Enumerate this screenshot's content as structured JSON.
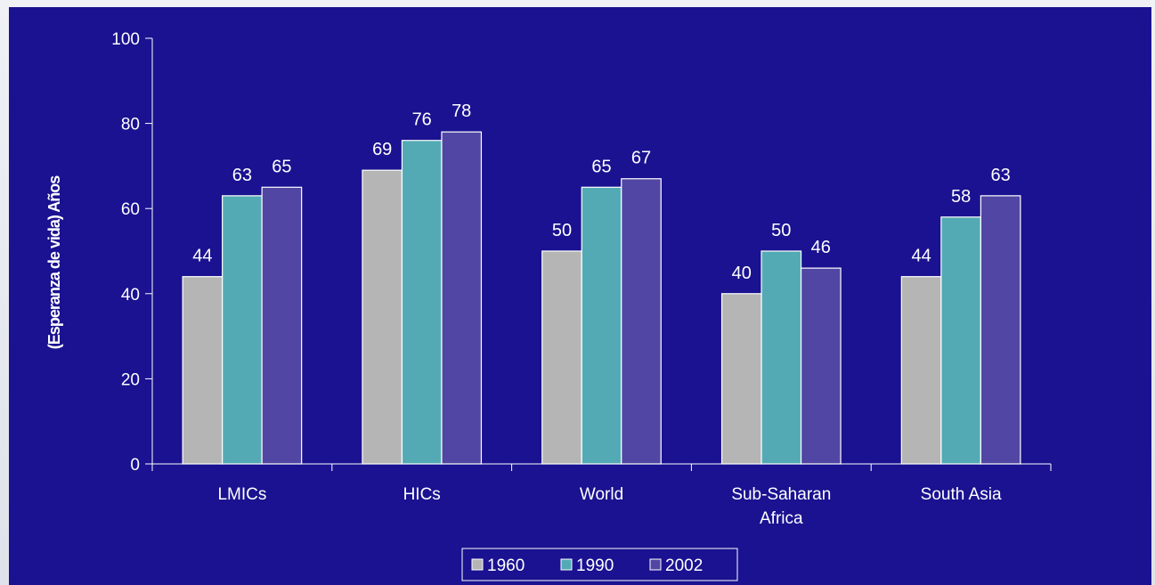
{
  "colors": {
    "panel_bg": "#1a1290",
    "axis": "#ffffff",
    "bar_stroke": "#ffffff",
    "text": "#ffffff"
  },
  "chart_data": {
    "type": "bar",
    "title": "",
    "xlabel": "",
    "ylabel": "(Esperanza de vida) Años",
    "ylim": [
      0,
      100
    ],
    "yticks": [
      0,
      20,
      40,
      60,
      80,
      100
    ],
    "grid": false,
    "legend_position": "bottom-center",
    "categories": [
      [
        "LMICs"
      ],
      [
        "HICs"
      ],
      [
        "World"
      ],
      [
        "Sub-Saharan",
        "Africa"
      ],
      [
        "South Asia"
      ]
    ],
    "series": [
      {
        "name": "1960",
        "color": "#b5b5b5",
        "values": [
          44,
          69,
          50,
          40,
          44
        ]
      },
      {
        "name": "1990",
        "color": "#53aab5",
        "values": [
          63,
          76,
          65,
          50,
          58
        ]
      },
      {
        "name": "2002",
        "color": "#5146a3",
        "values": [
          65,
          78,
          67,
          46,
          63
        ]
      }
    ]
  }
}
